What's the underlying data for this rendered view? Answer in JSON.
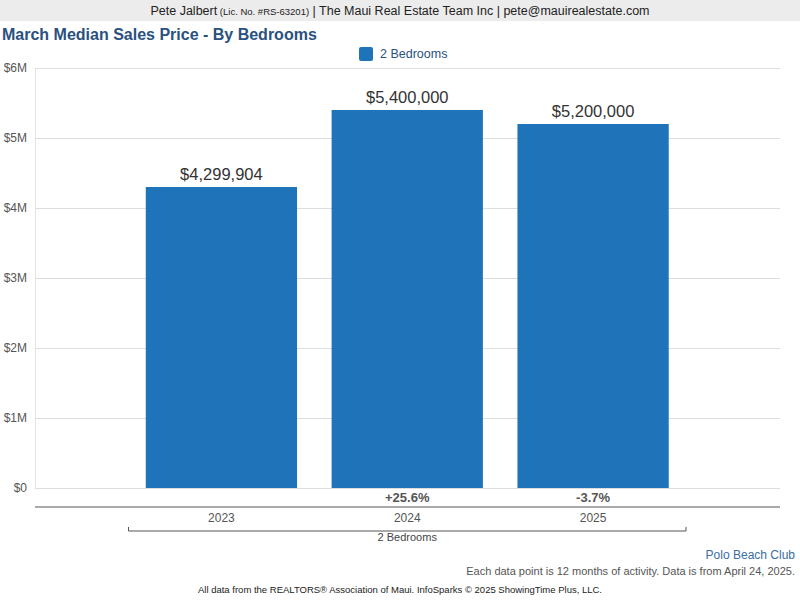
{
  "chart_data": {
    "type": "bar",
    "header": [
      "Pete Jalbert",
      "(Lic. No. #RS-63201)",
      "| The Maui Real Estate Team Inc | pete@mauirealestate.com"
    ],
    "title": "March Median Sales Price - By Bedrooms",
    "subtitle": "Polo Beach Club",
    "categories": [
      "2023",
      "2024",
      "2025"
    ],
    "series": [
      {
        "name": "2 Bedrooms",
        "color": "#1f73b8",
        "values": [
          4299904,
          5400000,
          5200000
        ],
        "value_labels": [
          "$4,299,904",
          "$5,400,000",
          "$5,200,000"
        ]
      }
    ],
    "change_labels": [
      null,
      "+25.6%",
      "-3.7%"
    ],
    "xlabel": "2 Bedrooms",
    "notes": [
      "Each data point is 12 months of activity. Data is from April 24, 2025.",
      "All data from the REALTORS® Association of Maui. InfoSparks © 2025 ShowingTime Plus, LLC."
    ],
    "ylim": [
      0,
      6000000
    ],
    "yticks": [
      {
        "value": 0,
        "label": "$0"
      },
      {
        "value": 1000000,
        "label": "$1M"
      },
      {
        "value": 2000000,
        "label": "$2M"
      },
      {
        "value": 3000000,
        "label": "$3M"
      },
      {
        "value": 4000000,
        "label": "$4M"
      },
      {
        "value": 5000000,
        "label": "$5M"
      },
      {
        "value": 6000000,
        "label": "$6M"
      }
    ],
    "grid": true,
    "legend": "top",
    "data_labels": true
  }
}
